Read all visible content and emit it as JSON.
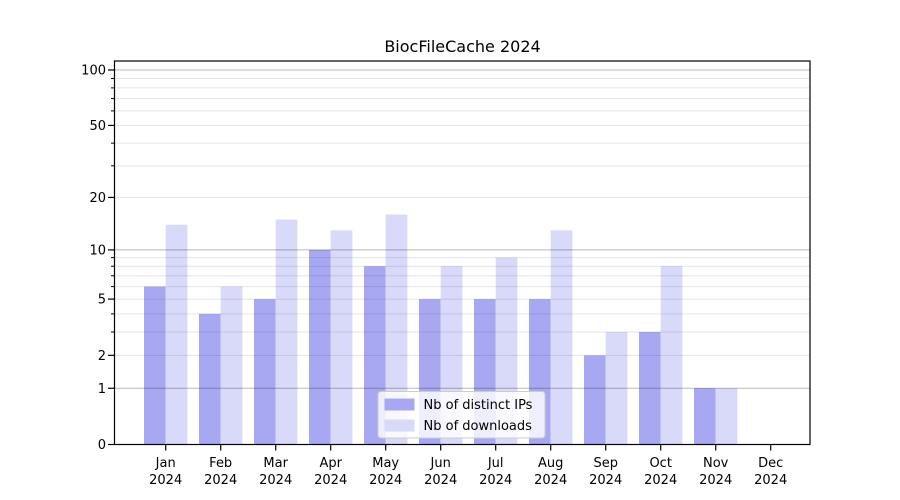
{
  "figure": {
    "title": "BiocFileCache 2024"
  },
  "chart_data": {
    "type": "bar",
    "title": "BiocFileCache 2024",
    "categories": [
      "Jan",
      "Feb",
      "Mar",
      "Apr",
      "May",
      "Jun",
      "Jul",
      "Aug",
      "Sep",
      "Oct",
      "Nov",
      "Dec"
    ],
    "category_subline": "2024",
    "series": [
      {
        "name": "Nb of distinct IPs",
        "values": [
          6,
          4,
          5,
          10,
          8,
          5,
          5,
          5,
          2,
          3,
          1,
          0
        ],
        "color": "#a8a8f2"
      },
      {
        "name": "Nb of downloads",
        "values": [
          14,
          6,
          15,
          13,
          16,
          8,
          9,
          13,
          3,
          8,
          1,
          0
        ],
        "color": "#d9d9fa"
      }
    ],
    "xlabel": "",
    "ylabel": "",
    "y_scale": "log1p",
    "ylim": [
      0,
      112
    ],
    "y_ticks_labeled": [
      0,
      1,
      2,
      5,
      10,
      20,
      50,
      100
    ],
    "y_grid_major": [
      1,
      10,
      100
    ],
    "y_grid_minor": [
      2,
      3,
      4,
      5,
      6,
      7,
      8,
      9,
      20,
      30,
      40,
      50,
      60,
      70,
      80,
      90
    ],
    "grid": true,
    "grid_over_bars": true,
    "legend_position": "lower-center-inside",
    "colors": {
      "grid_major": "rgba(0,0,0,0.28)",
      "grid_minor": "rgba(0,0,0,0.10)",
      "spine": "#000000",
      "legend_border": "#cccccc",
      "legend_background": "rgba(255,255,255,0.8)"
    }
  }
}
